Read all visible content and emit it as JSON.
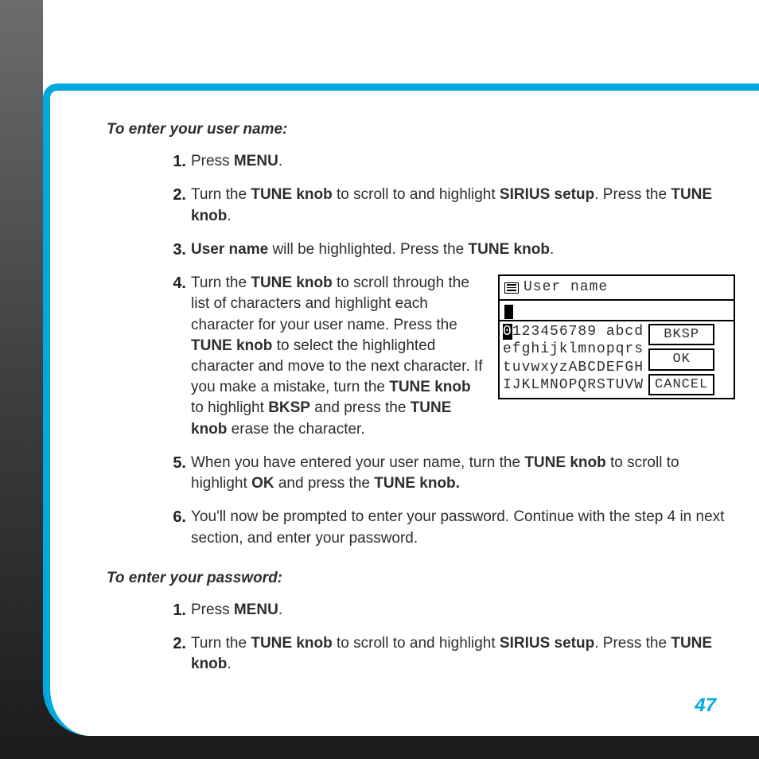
{
  "page_number": "47",
  "section1": {
    "title": "To enter your user name:",
    "steps": [
      {
        "num": "1.",
        "parts": [
          {
            "t": "Press "
          },
          {
            "t": "MENU",
            "b": true
          },
          {
            "t": "."
          }
        ]
      },
      {
        "num": "2.",
        "parts": [
          {
            "t": "Turn the "
          },
          {
            "t": "TUNE knob",
            "b": true
          },
          {
            "t": " to scroll to and highlight "
          },
          {
            "t": "SIRIUS setup",
            "b": true
          },
          {
            "t": ". Press the "
          },
          {
            "t": "TUNE knob",
            "b": true
          },
          {
            "t": "."
          }
        ]
      },
      {
        "num": "3.",
        "parts": [
          {
            "t": "User name",
            "b": true
          },
          {
            "t": " will be highlighted. Press the "
          },
          {
            "t": "TUNE knob",
            "b": true
          },
          {
            "t": "."
          }
        ]
      },
      {
        "num": "4.",
        "parts": [
          {
            "t": "Turn the "
          },
          {
            "t": "TUNE knob",
            "b": true
          },
          {
            "t": " to scroll through the list of characters and highlight each character for your user name. Press the "
          },
          {
            "t": "TUNE knob",
            "b": true
          },
          {
            "t": " to select the highlighted character and move to the next character. If you make a mistake, turn the "
          },
          {
            "t": "TUNE knob",
            "b": true
          },
          {
            "t": " to highlight "
          },
          {
            "t": "BKSP",
            "b": true
          },
          {
            "t": " and press the "
          },
          {
            "t": "TUNE knob",
            "b": true
          },
          {
            "t": " erase the character."
          }
        ],
        "has_lcd": true
      },
      {
        "num": "5.",
        "parts": [
          {
            "t": "When you have entered your user name, turn the "
          },
          {
            "t": "TUNE knob",
            "b": true
          },
          {
            "t": " to scroll to highlight "
          },
          {
            "t": "OK",
            "b": true
          },
          {
            "t": " and press the "
          },
          {
            "t": "TUNE knob.",
            "b": true
          }
        ]
      },
      {
        "num": "6.",
        "parts": [
          {
            "t": "You'll now be prompted to enter your password. Continue with the step 4 in next section, and enter your password."
          }
        ]
      }
    ]
  },
  "section2": {
    "title": "To enter your password:",
    "steps": [
      {
        "num": "1.",
        "parts": [
          {
            "t": "Press "
          },
          {
            "t": "MENU",
            "b": true
          },
          {
            "t": "."
          }
        ]
      },
      {
        "num": "2.",
        "parts": [
          {
            "t": "Turn the "
          },
          {
            "t": "TUNE knob",
            "b": true
          },
          {
            "t": " to scroll to and highlight "
          },
          {
            "t": "SIRIUS setup",
            "b": true
          },
          {
            "t": ". Press the "
          },
          {
            "t": "TUNE knob",
            "b": true
          },
          {
            "t": "."
          }
        ]
      }
    ]
  },
  "lcd": {
    "title": "User name",
    "highlighted_char": "0",
    "row1_rest": "123456789 abcd",
    "row2": "efghijklmnopqrs",
    "row3": "tuvwxyzABCDEFGH",
    "row4": "IJKLMNOPQRSTUVW",
    "buttons": {
      "bksp": "BKSP",
      "ok": "OK",
      "cancel": "CANCEL"
    }
  }
}
